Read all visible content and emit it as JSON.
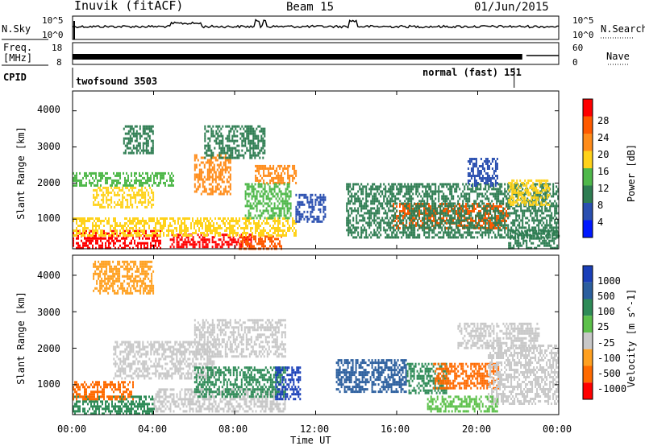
{
  "header": {
    "station": "Inuvik (fitACF)",
    "beam": "Beam 15",
    "date": "01/Jun/2015"
  },
  "noise_panel": {
    "left_label": "N.Sky",
    "left_ticks": [
      "10^5",
      "10^0"
    ],
    "right_ticks": [
      "10^5",
      "10^0"
    ],
    "right_label": "N.Search"
  },
  "freq_panel": {
    "label_line1": "Freq.",
    "label_line2": "[MHz]",
    "left_ticks": [
      "18",
      "8"
    ],
    "right_ticks": [
      "60",
      "0"
    ],
    "right_label": "Nave"
  },
  "cpid": {
    "label": "CPID",
    "modes": [
      {
        "name": "twofsound 3503",
        "start_hour": 0,
        "end_hour": 21.8
      },
      {
        "name": "normal (fast) 151",
        "start_hour": 21.8,
        "end_hour": 24
      }
    ]
  },
  "chart_data": [
    {
      "type": "heatmap",
      "title": "",
      "xlabel": "Time UT",
      "ylabel": "Slant Range [km]",
      "x_ticks": [
        "00:00",
        "04:00",
        "08:00",
        "12:00",
        "16:00",
        "20:00",
        "00:00"
      ],
      "x_tick_hours": [
        0,
        4,
        8,
        12,
        16,
        20,
        24
      ],
      "y_ticks": [
        "1000",
        "2000",
        "3000",
        "4000"
      ],
      "y_tick_values": [
        1000,
        2000,
        3000,
        4000
      ],
      "xlim": [
        0,
        24
      ],
      "ylim": [
        180,
        4550
      ],
      "colorbar": {
        "label": "Power [dB]",
        "ticks": [
          "4",
          "8",
          "12",
          "16",
          "20",
          "24",
          "28"
        ],
        "colors": [
          "#0018ff",
          "#2a4fb0",
          "#2e7d52",
          "#4fb84a",
          "#ffd21a",
          "#ff8c1a",
          "#ff5a00",
          "#ff0000"
        ]
      },
      "regions": [
        {
          "t0": 0.0,
          "t1": 4.3,
          "r0": 200,
          "r1": 700,
          "level": 7
        },
        {
          "t0": 4.8,
          "t1": 8.8,
          "r0": 200,
          "r1": 600,
          "level": 7
        },
        {
          "t0": 8.2,
          "t1": 10.3,
          "r0": 200,
          "r1": 550,
          "level": 6
        },
        {
          "t0": 0.0,
          "t1": 11.0,
          "r0": 550,
          "r1": 1050,
          "level": 4
        },
        {
          "t0": 1.0,
          "t1": 4.0,
          "r0": 1350,
          "r1": 1900,
          "level": 4
        },
        {
          "t0": 6.0,
          "t1": 7.8,
          "r0": 1700,
          "r1": 2800,
          "level": 5
        },
        {
          "t0": 9.0,
          "t1": 11.0,
          "r0": 2000,
          "r1": 2500,
          "level": 5
        },
        {
          "t0": 0.0,
          "t1": 5.0,
          "r0": 1900,
          "r1": 2300,
          "level": 3
        },
        {
          "t0": 2.5,
          "t1": 4.0,
          "r0": 2800,
          "r1": 3600,
          "level": 2
        },
        {
          "t0": 6.5,
          "t1": 9.5,
          "r0": 2700,
          "r1": 3600,
          "level": 2
        },
        {
          "t0": 8.5,
          "t1": 10.8,
          "r0": 1000,
          "r1": 2000,
          "level": 3
        },
        {
          "t0": 15.8,
          "t1": 21.5,
          "r0": 750,
          "r1": 1450,
          "level": 6
        },
        {
          "t0": 13.5,
          "t1": 24.0,
          "r0": 500,
          "r1": 2000,
          "level": 2
        },
        {
          "t0": 21.5,
          "t1": 23.5,
          "r0": 1400,
          "r1": 2100,
          "level": 4
        },
        {
          "t0": 19.5,
          "t1": 21.0,
          "r0": 1900,
          "r1": 2700,
          "level": 1
        },
        {
          "t0": 11.0,
          "t1": 12.5,
          "r0": 900,
          "r1": 1700,
          "level": 1
        },
        {
          "t0": 21.5,
          "t1": 24.0,
          "r0": 200,
          "r1": 700,
          "level": 2
        }
      ]
    },
    {
      "type": "heatmap",
      "title": "",
      "xlabel": "Time UT",
      "ylabel": "Slant Range [km]",
      "x_ticks": [
        "00:00",
        "04:00",
        "08:00",
        "12:00",
        "16:00",
        "20:00",
        "00:00"
      ],
      "x_tick_hours": [
        0,
        4,
        8,
        12,
        16,
        20,
        24
      ],
      "y_ticks": [
        "1000",
        "2000",
        "3000",
        "4000"
      ],
      "y_tick_values": [
        1000,
        2000,
        3000,
        4000
      ],
      "xlim": [
        0,
        24
      ],
      "ylim": [
        180,
        4550
      ],
      "colorbar": {
        "label": "Velocity [m s^-1]",
        "ticks": [
          "1000",
          "500",
          "100",
          "25",
          "-25",
          "-100",
          "-500",
          "-1000"
        ],
        "colors": [
          "#1a3fb8",
          "#2c5f9e",
          "#2e8b57",
          "#5cc04a",
          "#c8c8c8",
          "#ffa020",
          "#ff6a00",
          "#ff0000"
        ]
      },
      "regions": [
        {
          "t0": 0.0,
          "t1": 4.0,
          "r0": 200,
          "r1": 700,
          "level": 2
        },
        {
          "t0": 0.0,
          "t1": 3.0,
          "r0": 600,
          "r1": 1100,
          "level": 6
        },
        {
          "t0": 4.0,
          "t1": 10.5,
          "r0": 300,
          "r1": 900,
          "level": 4
        },
        {
          "t0": 2.0,
          "t1": 7.0,
          "r0": 1200,
          "r1": 2200,
          "level": 4
        },
        {
          "t0": 6.0,
          "t1": 10.5,
          "r0": 1800,
          "r1": 2800,
          "level": 4
        },
        {
          "t0": 6.0,
          "t1": 10.5,
          "r0": 700,
          "r1": 1500,
          "level": 2
        },
        {
          "t0": 10.0,
          "t1": 11.2,
          "r0": 600,
          "r1": 1500,
          "level": 0
        },
        {
          "t0": 13.0,
          "t1": 16.5,
          "r0": 800,
          "r1": 1700,
          "level": 1
        },
        {
          "t0": 16.5,
          "t1": 18.5,
          "r0": 800,
          "r1": 1600,
          "level": 2
        },
        {
          "t0": 17.8,
          "t1": 21.0,
          "r0": 900,
          "r1": 1600,
          "level": 6
        },
        {
          "t0": 20.5,
          "t1": 24.0,
          "r0": 500,
          "r1": 2100,
          "level": 4
        },
        {
          "t0": 19.0,
          "t1": 23.0,
          "r0": 2000,
          "r1": 2700,
          "level": 4
        },
        {
          "t0": 1.0,
          "t1": 4.0,
          "r0": 3500,
          "r1": 4400,
          "level": 5
        },
        {
          "t0": 17.5,
          "t1": 21.0,
          "r0": 300,
          "r1": 700,
          "level": 3
        }
      ]
    }
  ]
}
